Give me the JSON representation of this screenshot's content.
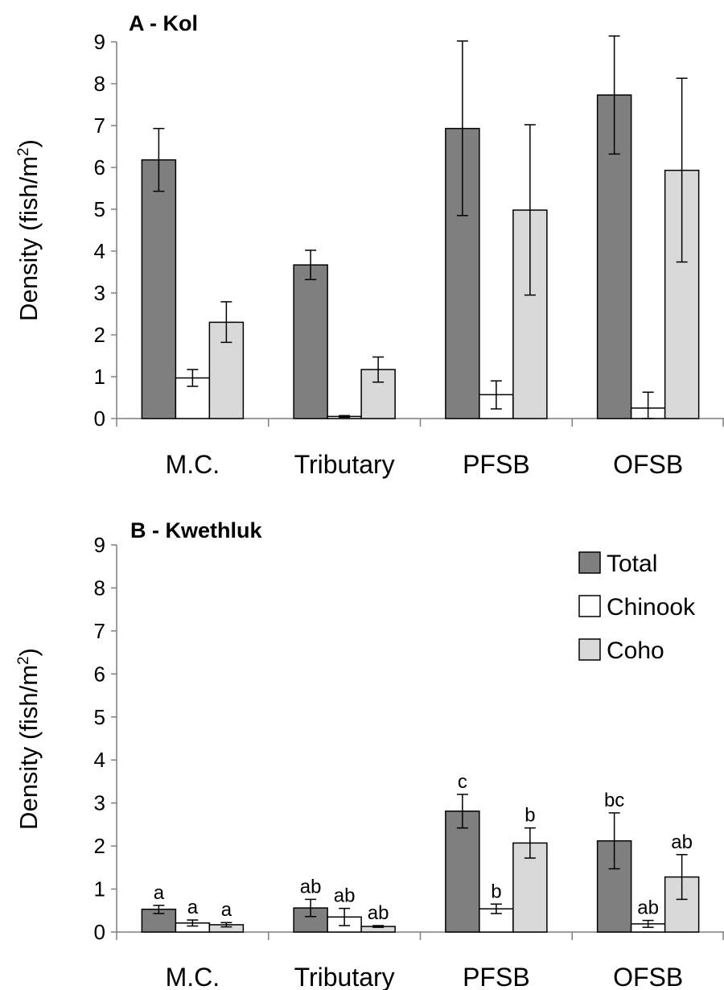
{
  "chart_data": [
    {
      "type": "bar",
      "title": "A - Kol",
      "ylabel": "Density (fish/m",
      "ylabel_sup": "2",
      "ylabel_close": ")",
      "ylim": [
        0,
        9
      ],
      "yticks": [
        "0",
        "1",
        "2",
        "3",
        "4",
        "5",
        "6",
        "7",
        "8",
        "9"
      ],
      "categories": [
        "M.C.",
        "Tributary",
        "PFSB",
        "OFSB"
      ],
      "grid": false,
      "legend": false,
      "series": [
        {
          "name": "Total",
          "color": "#7f7f7f",
          "values": [
            6.18,
            3.67,
            6.93,
            7.73
          ],
          "err_low": [
            5.43,
            3.32,
            4.85,
            6.32
          ],
          "err_high": [
            6.93,
            4.02,
            9.02,
            9.14
          ],
          "labels": [
            "",
            "",
            "",
            ""
          ]
        },
        {
          "name": "Chinook",
          "color": "#ffffff",
          "values": [
            0.97,
            0.05,
            0.57,
            0.25
          ],
          "err_low": [
            0.77,
            0.03,
            0.23,
            0.0
          ],
          "err_high": [
            1.17,
            0.07,
            0.9,
            0.63
          ],
          "labels": [
            "",
            "",
            "",
            ""
          ]
        },
        {
          "name": "Coho",
          "color": "#d9d9d9",
          "values": [
            2.3,
            1.17,
            4.98,
            5.93
          ],
          "err_low": [
            1.82,
            0.87,
            2.95,
            3.74
          ],
          "err_high": [
            2.79,
            1.47,
            7.02,
            8.13
          ],
          "labels": [
            "",
            "",
            "",
            ""
          ]
        }
      ]
    },
    {
      "type": "bar",
      "title": "B - Kwethluk",
      "ylabel": "Density (fish/m",
      "ylabel_sup": "2",
      "ylabel_close": ")",
      "ylim": [
        0,
        9
      ],
      "yticks": [
        "0",
        "1",
        "2",
        "3",
        "4",
        "5",
        "6",
        "7",
        "8",
        "9"
      ],
      "categories": [
        "M.C.",
        "Tributary",
        "PFSB",
        "OFSB"
      ],
      "grid": false,
      "legend": true,
      "legend_position": "top-right",
      "series": [
        {
          "name": "Total",
          "color": "#7f7f7f",
          "values": [
            0.53,
            0.56,
            2.81,
            2.12
          ],
          "err_low": [
            0.43,
            0.36,
            2.42,
            1.47
          ],
          "err_high": [
            0.62,
            0.76,
            3.2,
            2.77
          ],
          "labels": [
            "a",
            "ab",
            "c",
            "bc"
          ]
        },
        {
          "name": "Chinook",
          "color": "#ffffff",
          "values": [
            0.21,
            0.35,
            0.54,
            0.19
          ],
          "err_low": [
            0.14,
            0.15,
            0.43,
            0.11
          ],
          "err_high": [
            0.28,
            0.55,
            0.65,
            0.27
          ],
          "labels": [
            "a",
            "ab",
            "b",
            "ab"
          ]
        },
        {
          "name": "Coho",
          "color": "#d9d9d9",
          "values": [
            0.17,
            0.13,
            2.07,
            1.28
          ],
          "err_low": [
            0.12,
            0.11,
            1.72,
            0.76
          ],
          "err_high": [
            0.22,
            0.15,
            2.42,
            1.8
          ],
          "labels": [
            "a",
            "ab",
            "b",
            "ab"
          ]
        }
      ]
    }
  ]
}
